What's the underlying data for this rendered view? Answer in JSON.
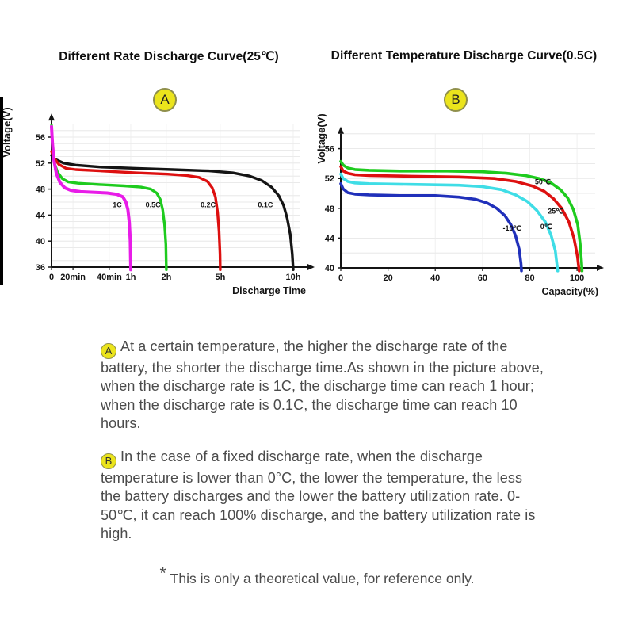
{
  "chart_data": [
    {
      "id": "rate",
      "type": "line",
      "title": "Different Rate Discharge Curve(25℃)",
      "badge": "A",
      "ylabel": "Voltage(V)",
      "xlabel": "Discharge Time",
      "x_axis_mode": "nonlinear-time",
      "x_range": [
        0,
        1
      ],
      "x_ticks": [
        {
          "label": "0",
          "x": 0.0
        },
        {
          "label": "20min",
          "x": 0.089
        },
        {
          "label": "40min",
          "x": 0.239
        },
        {
          "label": "1h",
          "x": 0.328
        },
        {
          "label": "2h",
          "x": 0.475
        },
        {
          "label": "5h",
          "x": 0.698
        },
        {
          "label": "10h",
          "x": 1.0
        }
      ],
      "y_ticks": [
        36,
        40,
        44,
        48,
        52,
        56
      ],
      "y_range": [
        36,
        59
      ],
      "grid": {
        "y_step_volts": 1,
        "vertical_at_ticks": true
      },
      "series": [
        {
          "name": "1C",
          "color": "#e81ce8",
          "width": 4,
          "label_at": [
            0.272,
            45.2
          ],
          "points": [
            [
              0,
              57.6
            ],
            [
              0.004,
              55
            ],
            [
              0.01,
              52.5
            ],
            [
              0.02,
              50.4
            ],
            [
              0.035,
              49
            ],
            [
              0.055,
              48.2
            ],
            [
              0.08,
              47.8
            ],
            [
              0.12,
              47.6
            ],
            [
              0.18,
              47.5
            ],
            [
              0.23,
              47.4
            ],
            [
              0.27,
              47.2
            ],
            [
              0.295,
              46.8
            ],
            [
              0.308,
              46
            ],
            [
              0.316,
              44.8
            ],
            [
              0.322,
              42.8
            ],
            [
              0.326,
              40
            ],
            [
              0.328,
              35.6
            ]
          ]
        },
        {
          "name": "0.5C",
          "color": "#1ecb1e",
          "width": 3.4,
          "label_at": [
            0.42,
            45.2
          ],
          "points": [
            [
              0,
              57.8
            ],
            [
              0.004,
              54.5
            ],
            [
              0.012,
              52
            ],
            [
              0.025,
              50.6
            ],
            [
              0.045,
              49.6
            ],
            [
              0.07,
              49.1
            ],
            [
              0.11,
              48.9
            ],
            [
              0.2,
              48.7
            ],
            [
              0.3,
              48.5
            ],
            [
              0.37,
              48.3
            ],
            [
              0.41,
              48
            ],
            [
              0.435,
              47.4
            ],
            [
              0.45,
              46.4
            ],
            [
              0.46,
              44.8
            ],
            [
              0.468,
              42.5
            ],
            [
              0.473,
              39.5
            ],
            [
              0.475,
              35.6
            ]
          ]
        },
        {
          "name": "0.2C",
          "color": "#dd1010",
          "width": 3.4,
          "label_at": [
            0.648,
            45.2
          ],
          "points": [
            [
              0,
              53.8
            ],
            [
              0.01,
              52.8
            ],
            [
              0.03,
              51.8
            ],
            [
              0.06,
              51.2
            ],
            [
              0.1,
              51
            ],
            [
              0.2,
              50.8
            ],
            [
              0.35,
              50.5
            ],
            [
              0.48,
              50.3
            ],
            [
              0.56,
              50.1
            ],
            [
              0.61,
              49.8
            ],
            [
              0.645,
              49.2
            ],
            [
              0.665,
              48.2
            ],
            [
              0.678,
              46.8
            ],
            [
              0.687,
              44.5
            ],
            [
              0.693,
              41.5
            ],
            [
              0.697,
              38
            ],
            [
              0.698,
              35.6
            ]
          ]
        },
        {
          "name": "0.1C",
          "color": "#141414",
          "width": 3.4,
          "label_at": [
            0.885,
            45.2
          ],
          "points": [
            [
              0,
              53.2
            ],
            [
              0.015,
              52.6
            ],
            [
              0.05,
              52
            ],
            [
              0.1,
              51.7
            ],
            [
              0.2,
              51.4
            ],
            [
              0.35,
              51.2
            ],
            [
              0.5,
              51
            ],
            [
              0.65,
              50.8
            ],
            [
              0.75,
              50.5
            ],
            [
              0.82,
              50
            ],
            [
              0.87,
              49.3
            ],
            [
              0.91,
              48.3
            ],
            [
              0.94,
              47
            ],
            [
              0.96,
              45.5
            ],
            [
              0.975,
              43.5
            ],
            [
              0.988,
              41
            ],
            [
              0.996,
              38
            ],
            [
              1,
              35.6
            ]
          ]
        }
      ]
    },
    {
      "id": "temperature",
      "type": "line",
      "title": "Different Temperature Discharge Curve(0.5C)",
      "badge": "B",
      "ylabel": "Voltage(V)",
      "xlabel": "Capacity(%)",
      "x_axis_mode": "linear-percent",
      "x_range": [
        0,
        105
      ],
      "x_ticks": [
        {
          "label": "0",
          "x": 0
        },
        {
          "label": "20",
          "x": 20
        },
        {
          "label": "40",
          "x": 40
        },
        {
          "label": "60",
          "x": 60
        },
        {
          "label": "80",
          "x": 80
        },
        {
          "label": "100",
          "x": 100
        }
      ],
      "y_ticks": [
        40,
        44,
        48,
        52,
        56
      ],
      "y_range": [
        40,
        59
      ],
      "grid": {
        "y_step_volts": 2,
        "x_step": 20
      },
      "series": [
        {
          "name": "50℃",
          "color": "#1ecb1e",
          "width": 3.6,
          "label_at": [
            85.5,
            51.2
          ],
          "points": [
            [
              0,
              54.3
            ],
            [
              1,
              53.8
            ],
            [
              3,
              53.4
            ],
            [
              6,
              53.2
            ],
            [
              12,
              53.1
            ],
            [
              25,
              53
            ],
            [
              45,
              53
            ],
            [
              60,
              52.9
            ],
            [
              70,
              52.7
            ],
            [
              78,
              52.4
            ],
            [
              84,
              52
            ],
            [
              89,
              51.4
            ],
            [
              93,
              50.5
            ],
            [
              96,
              49.4
            ],
            [
              98.5,
              47.8
            ],
            [
              100.3,
              45.8
            ],
            [
              101.3,
              43.3
            ],
            [
              101.9,
              40.8
            ],
            [
              102.1,
              39.6
            ]
          ]
        },
        {
          "name": "25℃",
          "color": "#dd1010",
          "width": 3.6,
          "label_at": [
            91,
            47.3
          ],
          "points": [
            [
              0,
              53.6
            ],
            [
              1,
              53
            ],
            [
              3,
              52.7
            ],
            [
              6,
              52.5
            ],
            [
              12,
              52.4
            ],
            [
              30,
              52.3
            ],
            [
              50,
              52.2
            ],
            [
              65,
              52
            ],
            [
              74,
              51.6
            ],
            [
              81,
              51
            ],
            [
              86,
              50.3
            ],
            [
              90,
              49.3
            ],
            [
              93.5,
              48
            ],
            [
              96.5,
              46.2
            ],
            [
              98.7,
              44
            ],
            [
              100.2,
              41.5
            ],
            [
              100.9,
              39.6
            ]
          ]
        },
        {
          "name": "0℃",
          "color": "#3fdde6",
          "width": 3.6,
          "label_at": [
            87,
            45.2
          ],
          "points": [
            [
              0,
              52.6
            ],
            [
              1,
              52
            ],
            [
              3,
              51.6
            ],
            [
              6,
              51.4
            ],
            [
              12,
              51.3
            ],
            [
              30,
              51.2
            ],
            [
              50,
              51.1
            ],
            [
              60,
              50.9
            ],
            [
              68,
              50.5
            ],
            [
              74,
              49.8
            ],
            [
              79,
              48.9
            ],
            [
              83,
              47.7
            ],
            [
              86.5,
              46.2
            ],
            [
              89,
              44.4
            ],
            [
              90.8,
              42.3
            ],
            [
              91.8,
              39.6
            ]
          ]
        },
        {
          "name": "-10℃",
          "color": "#2030ba",
          "width": 3.6,
          "label_at": [
            72.5,
            45.0
          ],
          "points": [
            [
              0,
              51.3
            ],
            [
              1,
              50.6
            ],
            [
              3,
              50.1
            ],
            [
              6,
              49.9
            ],
            [
              12,
              49.8
            ],
            [
              25,
              49.7
            ],
            [
              40,
              49.7
            ],
            [
              50,
              49.5
            ],
            [
              57,
              49.2
            ],
            [
              62,
              48.7
            ],
            [
              66,
              48
            ],
            [
              69.5,
              47
            ],
            [
              72,
              45.8
            ],
            [
              74,
              44.3
            ],
            [
              75.5,
              42.5
            ],
            [
              76.3,
              40.6
            ],
            [
              76.5,
              39.6
            ]
          ]
        }
      ]
    }
  ],
  "annotations": {
    "a": {
      "badge": "A",
      "text": "At a certain temperature, the higher the discharge rate of the battery, the shorter the discharge time.As shown in the picture above, when the discharge rate is 1C, the discharge time can reach 1 hour; when the discharge rate is 0.1C, the discharge time can reach 10 hours."
    },
    "b": {
      "badge": "B",
      "text": "In the case of a fixed discharge rate, when the discharge temperature is lower than 0°C, the lower the temperature, the less the battery discharges and the lower the battery utilization rate. 0-50℃, it can reach 100% discharge, and the battery utilization rate is high."
    },
    "footnote_star": "*",
    "footnote": "This is only a theoretical value, for reference only."
  },
  "colors": {
    "badge_fill": "#ebe41c",
    "badge_border": "#8f8f4b",
    "text": "#4b4b4b",
    "grid": "#e3e3e3",
    "grid_vertical": "#ececec",
    "axis": "#141414"
  }
}
